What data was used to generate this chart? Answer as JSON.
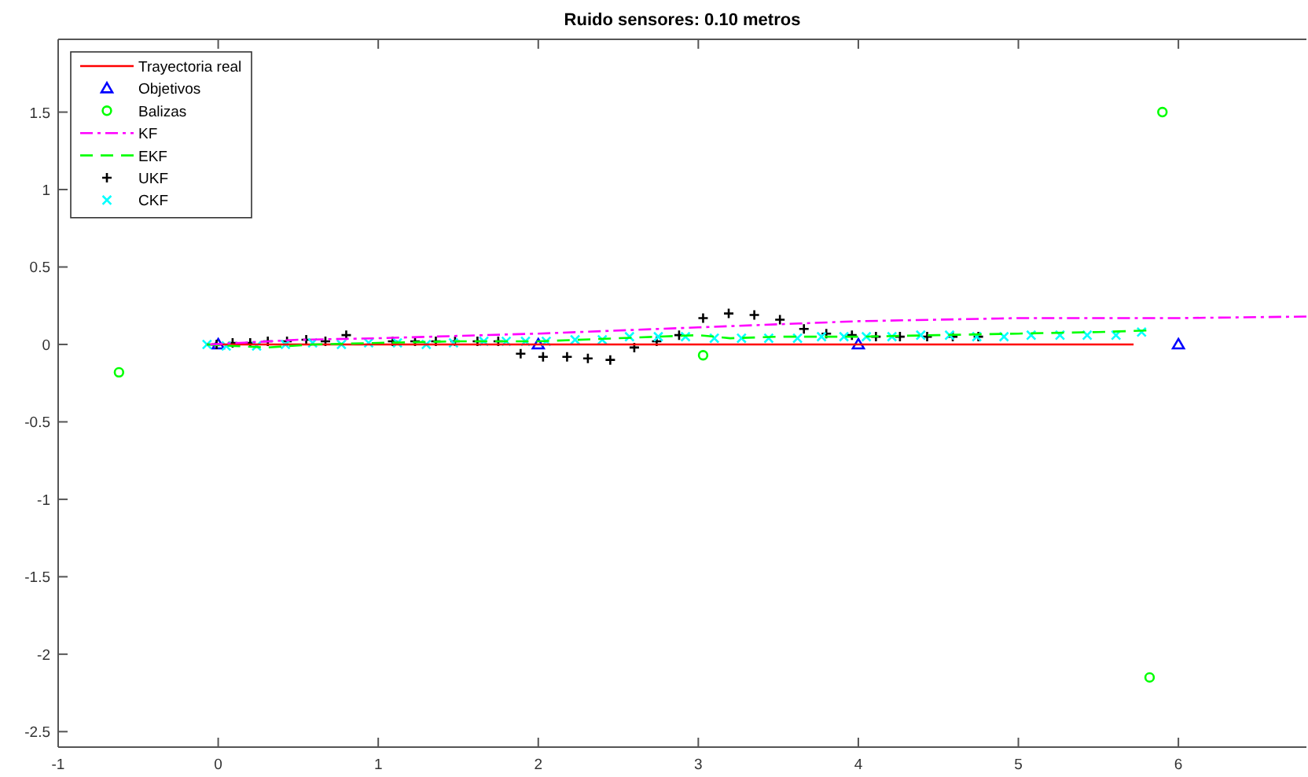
{
  "chart_data": {
    "type": "scatter",
    "title": "Ruido sensores: 0.10 metros",
    "xlim": [
      -1,
      6.8
    ],
    "ylim": [
      -2.6,
      1.97
    ],
    "xticks": [
      -1,
      0,
      1,
      2,
      3,
      4,
      5,
      6
    ],
    "yticks": [
      -2.5,
      -2,
      -1.5,
      -1,
      -0.5,
      0,
      0.5,
      1,
      1.5
    ],
    "grid": false,
    "legend": "top left",
    "series": [
      {
        "name": "Trayectoria real",
        "type": "line",
        "color": "#ff0000",
        "marker": "none",
        "line_style": "solid",
        "x": [
          -0.07,
          5.72
        ],
        "values": [
          0,
          0
        ]
      },
      {
        "name": "Objetivos",
        "color": "#0000ff",
        "marker": "triangle",
        "x": [
          0,
          2,
          4,
          6
        ],
        "values": [
          0,
          0,
          0,
          0
        ]
      },
      {
        "name": "Balizas",
        "color": "#00ff00",
        "marker": "circle",
        "x": [
          -0.62,
          3.03,
          5.9,
          5.82
        ],
        "values": [
          -0.18,
          -0.07,
          1.5,
          -2.15
        ]
      },
      {
        "name": "KF",
        "type": "line",
        "color": "#ff00ff",
        "marker": "none",
        "line_style": "dashdot",
        "x": [
          -0.05,
          0.5,
          1,
          2,
          3,
          4,
          5,
          6,
          6.8
        ],
        "values": [
          0,
          0.03,
          0.04,
          0.07,
          0.11,
          0.15,
          0.17,
          0.17,
          0.18
        ]
      },
      {
        "name": "EKF",
        "type": "line",
        "color": "#00ff00",
        "marker": "none",
        "line_style": "dashed",
        "x": [
          -0.07,
          0.1,
          0.3,
          0.6,
          1,
          1.5,
          2,
          2.5,
          3,
          3.2,
          3.5,
          4,
          4.5,
          5,
          5.5,
          5.8
        ],
        "values": [
          0,
          -0.01,
          -0.02,
          0,
          0.01,
          0.02,
          0.02,
          0.04,
          0.06,
          0.04,
          0.05,
          0.05,
          0.06,
          0.07,
          0.08,
          0.09
        ]
      },
      {
        "name": "UKF",
        "color": "#000000",
        "marker": "plus",
        "x": [
          -0.01,
          0.09,
          0.2,
          0.31,
          0.43,
          0.55,
          0.67,
          0.8,
          1.09,
          1.23,
          1.36,
          1.48,
          1.62,
          1.75,
          1.89,
          2.03,
          2.18,
          2.31,
          2.45,
          2.6,
          2.74,
          2.88,
          3.03,
          3.19,
          3.35,
          3.51,
          3.66,
          3.8,
          3.96,
          4.11,
          4.26,
          4.43,
          4.59,
          4.75
        ],
        "values": [
          0,
          0.01,
          0.01,
          0.02,
          0.02,
          0.03,
          0.02,
          0.06,
          0.02,
          0.02,
          0.02,
          0.02,
          0.02,
          0.02,
          -0.06,
          -0.08,
          -0.08,
          -0.09,
          -0.1,
          -0.02,
          0.02,
          0.06,
          0.17,
          0.2,
          0.19,
          0.16,
          0.1,
          0.07,
          0.06,
          0.05,
          0.05,
          0.05,
          0.05,
          0.05
        ]
      },
      {
        "name": "CKF",
        "color": "#00ffff",
        "marker": "cross",
        "x": [
          -0.07,
          0.05,
          0.24,
          0.42,
          0.59,
          0.77,
          0.94,
          1.12,
          1.3,
          1.47,
          1.66,
          1.8,
          1.92,
          2.05,
          2.23,
          2.4,
          2.57,
          2.75,
          2.92,
          3.1,
          3.27,
          3.44,
          3.62,
          3.77,
          3.91,
          4.05,
          4.21,
          4.39,
          4.57,
          4.74,
          4.91,
          5.08,
          5.26,
          5.43,
          5.61,
          5.77
        ],
        "values": [
          0,
          -0.01,
          -0.01,
          0,
          0.01,
          0,
          0.01,
          0.01,
          0,
          0.01,
          0.02,
          0.02,
          0.02,
          0.02,
          0.03,
          0.03,
          0.05,
          0.05,
          0.05,
          0.04,
          0.04,
          0.04,
          0.04,
          0.05,
          0.05,
          0.05,
          0.05,
          0.06,
          0.06,
          0.05,
          0.05,
          0.06,
          0.06,
          0.06,
          0.06,
          0.08
        ]
      }
    ]
  }
}
